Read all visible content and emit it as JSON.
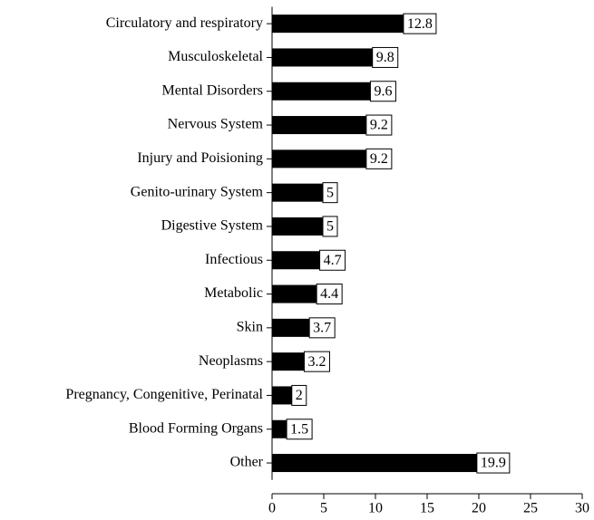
{
  "chart_data": {
    "type": "hbar",
    "categories": [
      "Circulatory and respiratory",
      "Musculoskeletal",
      "Mental Disorders",
      "Nervous System",
      "Injury and Poisioning",
      "Genito-urinary System",
      "Digestive System",
      "Infectious",
      "Metabolic",
      "Skin",
      "Neoplasms",
      "Pregnancy, Congenitive, Perinatal",
      "Blood Forming Organs",
      "Other"
    ],
    "values": [
      12.8,
      9.8,
      9.6,
      9.2,
      9.2,
      5,
      5,
      4.7,
      4.4,
      3.7,
      3.2,
      2,
      1.5,
      19.9
    ],
    "color": "#000000",
    "xlim": [
      0,
      30
    ],
    "xticks": [
      0,
      5,
      10,
      15,
      20,
      25,
      30
    ],
    "grid": false
  }
}
